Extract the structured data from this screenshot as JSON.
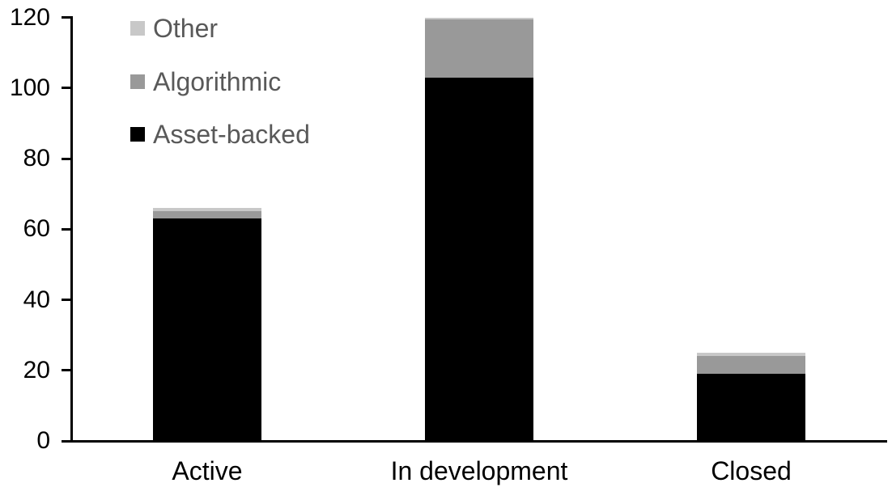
{
  "chart_data": {
    "type": "bar",
    "stacked": true,
    "title": "",
    "categories": [
      "Active",
      "In development",
      "Closed"
    ],
    "series": [
      {
        "name": "Asset-backed",
        "color": "#000000",
        "values": [
          63,
          103,
          19
        ]
      },
      {
        "name": "Algorithmic",
        "color": "#999999",
        "values": [
          2,
          16.5,
          5
        ]
      },
      {
        "name": "Other",
        "color": "#C8C8C8",
        "values": [
          1,
          0.5,
          1
        ]
      }
    ],
    "totals": [
      66,
      120,
      25
    ],
    "ylim": [
      0,
      120
    ],
    "y_ticks": [
      0,
      20,
      40,
      60,
      80,
      100,
      120
    ],
    "grid": false,
    "legend": {
      "position": "top-left",
      "order": [
        "Other",
        "Algorithmic",
        "Asset-backed"
      ]
    },
    "axis_color": "#000000",
    "label_color": "#000000",
    "legend_text_color": "#595959"
  }
}
